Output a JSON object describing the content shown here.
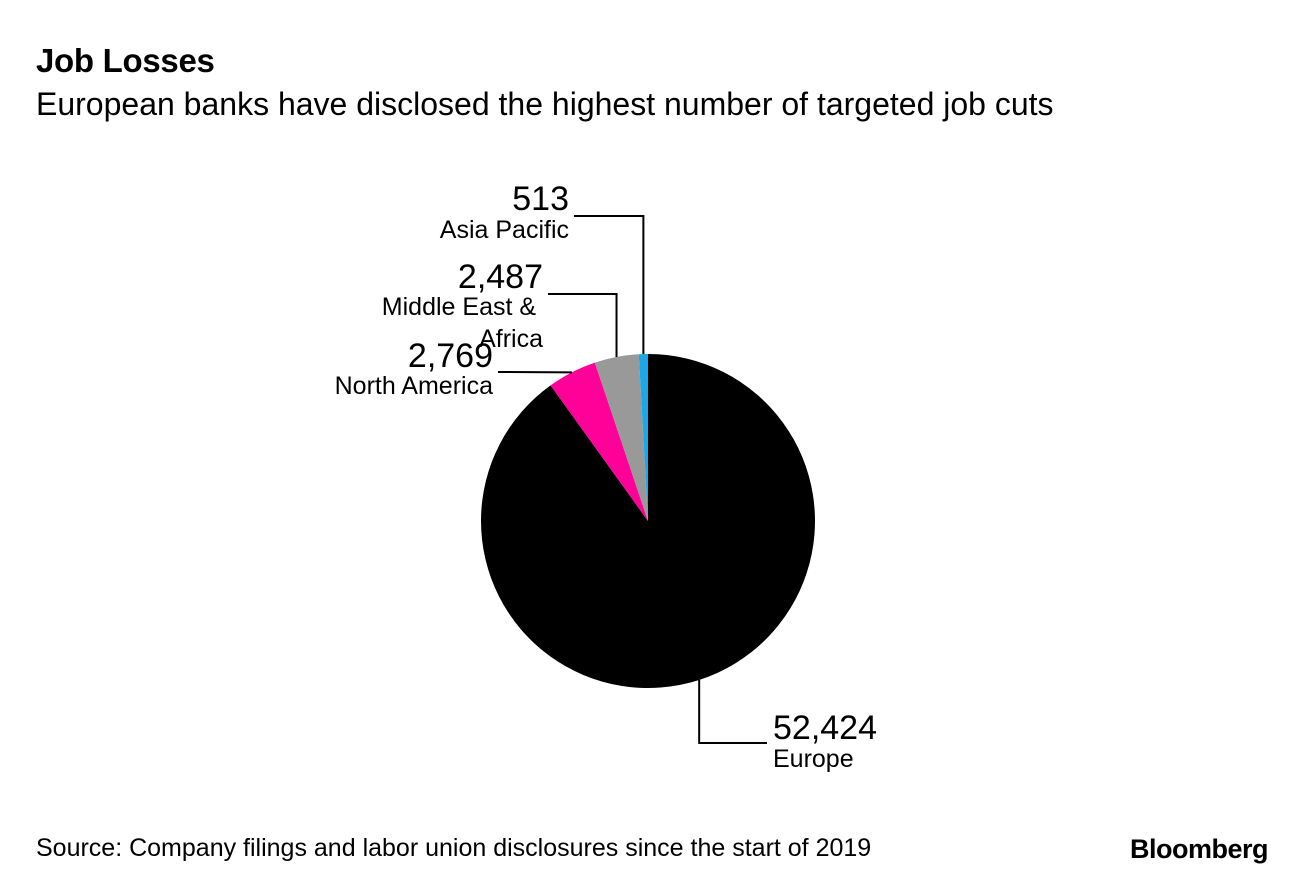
{
  "header": {
    "title": "Job Losses",
    "subtitle": "European banks have disclosed the highest number of targeted job cuts"
  },
  "footer": {
    "source": "Source: Company filings and labor union disclosures since the start of 2019",
    "brand": "Bloomberg"
  },
  "chart_data": {
    "type": "pie",
    "title": "Job Losses",
    "subtitle": "European banks have disclosed the highest number of targeted job cuts",
    "start_angle_deg": 0,
    "direction": "clockwise",
    "slices": [
      {
        "label": "Europe",
        "value": 52424,
        "value_label": "52,424",
        "color": "#000000"
      },
      {
        "label": "North America",
        "value": 2769,
        "value_label": "2,769",
        "color": "#ff0099"
      },
      {
        "label": "Middle East & Africa",
        "value": 2487,
        "value_label": "2,487",
        "color": "#999999"
      },
      {
        "label": "Asia Pacific",
        "value": 513,
        "value_label": "513",
        "color": "#1aa8e8"
      }
    ]
  }
}
